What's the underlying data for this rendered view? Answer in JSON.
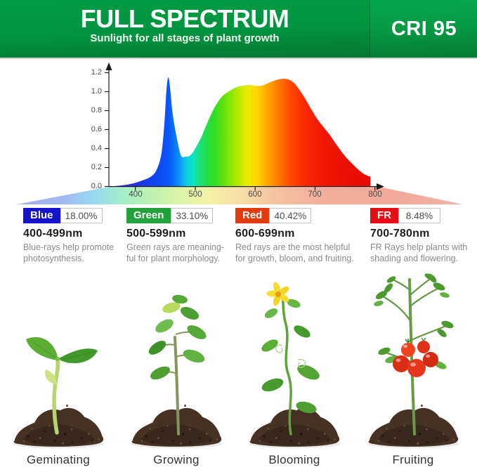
{
  "header": {
    "title": "FULL SPECTRUM",
    "subtitle": "Sunlight for all stages of plant growth",
    "cri_label": "CRI 95"
  },
  "colors": {
    "header_green": "#029440",
    "cri_panel_green": "#059843",
    "blue_badge": "#1414cc",
    "green_badge": "#21a23a",
    "red_badge": "#e23b0e",
    "fr_badge": "#e60d15"
  },
  "chart_data": {
    "type": "area",
    "title": "",
    "xlabel": "",
    "ylabel": "",
    "x_range": [
      355,
      805
    ],
    "ylim": [
      0,
      1.2
    ],
    "grid": false,
    "legend": false,
    "x_ticks": [
      "400",
      "500",
      "600",
      "700",
      "800"
    ],
    "y_ticks": [
      "1.2",
      "1.0",
      "0.8",
      "0.6",
      "0.4",
      "0.2",
      "0.0"
    ],
    "fill_style": "rainbow-spectrum-gradient",
    "x": [
      355,
      375,
      395,
      410,
      425,
      435,
      443,
      448,
      452,
      455,
      458,
      462,
      468,
      476,
      484,
      492,
      500,
      510,
      520,
      532,
      545,
      558,
      570,
      582,
      592,
      602,
      612,
      622,
      634,
      645,
      655,
      665,
      675,
      685,
      695,
      705,
      715,
      725,
      737,
      750,
      762,
      772,
      782,
      791
    ],
    "y": [
      0,
      0.01,
      0.03,
      0.06,
      0.1,
      0.17,
      0.33,
      0.62,
      1.02,
      1.15,
      1.04,
      0.78,
      0.55,
      0.33,
      0.315,
      0.33,
      0.4,
      0.52,
      0.67,
      0.83,
      0.95,
      1.01,
      1.05,
      1.065,
      1.07,
      1.06,
      1.065,
      1.09,
      1.12,
      1.135,
      1.13,
      1.09,
      1.01,
      0.91,
      0.8,
      0.7,
      0.62,
      0.54,
      0.43,
      0.32,
      0.24,
      0.18,
      0.13,
      0.105
    ]
  },
  "bands": [
    {
      "name": "Blue",
      "percent": "18.00%",
      "range": "400-499nm",
      "color": "#1414cc",
      "lines": [
        "Blue-rays help promote",
        "photosynthesis."
      ]
    },
    {
      "name": "Green",
      "percent": "33.10%",
      "range": "500-599nm",
      "color": "#21a23a",
      "lines": [
        "Green rays are meaning-",
        "ful for plant morphology."
      ]
    },
    {
      "name": "Red",
      "percent": "40.42%",
      "range": "600-699nm",
      "color": "#e23b0e",
      "lines": [
        "Red rays are the most helpful",
        "for growth, bloom, and fruiting."
      ]
    },
    {
      "name": "FR",
      "percent": "8.48%",
      "range": "700-780nm",
      "color": "#e60d15",
      "lines": [
        "FR Rays help plants with",
        "shading and flowering."
      ]
    }
  ],
  "stages": [
    {
      "label": "Geminating"
    },
    {
      "label": "Growing"
    },
    {
      "label": "Blooming"
    },
    {
      "label": "Fruiting"
    }
  ]
}
